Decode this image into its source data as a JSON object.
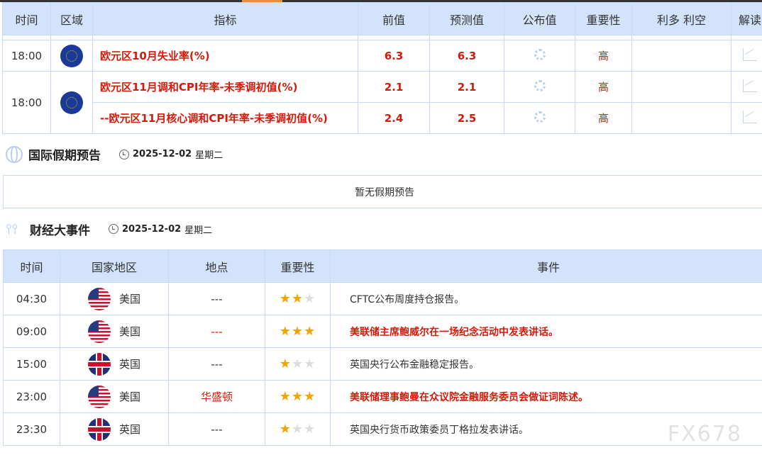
{
  "indicators": {
    "headers": [
      "时间",
      "区域",
      "指标",
      "前值",
      "预测值",
      "公布值",
      "重要性",
      "利多 利空",
      "解读"
    ],
    "rows": [
      {
        "time": "18:00",
        "region": "eu",
        "indicator": "欧元区10月失业率(%)",
        "previous": "6.3",
        "forecast": "6.3",
        "importance": "高"
      },
      {
        "time": "18:00",
        "region": "eu",
        "indicator": "欧元区11月调和CPI年率-未季调初值(%)",
        "previous": "2.1",
        "forecast": "2.1",
        "importance": "高"
      },
      {
        "time": "",
        "region": "",
        "indicator": "--欧元区11月核心调和CPI年率-未季调初值(%)",
        "previous": "2.4",
        "forecast": "2.5",
        "importance": "高"
      }
    ]
  },
  "holidays": {
    "title": "国际假期预告",
    "date": "2025-12-02",
    "weekday": "星期二",
    "empty_text": "暂无假期预告"
  },
  "events": {
    "title": "财经大事件",
    "date": "2025-12-02",
    "weekday": "星期二",
    "headers": [
      "时间",
      "国家地区",
      "地点",
      "重要性",
      "事件"
    ],
    "rows": [
      {
        "time": "04:30",
        "flag": "us",
        "country": "美国",
        "place": "---",
        "stars": 2,
        "event": "CFTC公布周度持仓报告。",
        "highlight": false
      },
      {
        "time": "09:00",
        "flag": "us",
        "country": "美国",
        "place": "---",
        "stars": 3,
        "event": "美联储主席鲍威尔在一场纪念活动中发表讲话。",
        "highlight": true
      },
      {
        "time": "15:00",
        "flag": "uk",
        "country": "英国",
        "place": "---",
        "stars": 1,
        "event": "英国央行公布金融稳定报告。",
        "highlight": false
      },
      {
        "time": "23:00",
        "flag": "us",
        "country": "美国",
        "place": "华盛顿",
        "stars": 3,
        "event": "美联储理事鲍曼在众议院金融服务委员会做证词陈述。",
        "highlight": true
      },
      {
        "time": "23:30",
        "flag": "uk",
        "country": "英国",
        "place": "---",
        "stars": 1,
        "event": "英国央行货币政策委员丁格拉发表讲话。",
        "highlight": false
      }
    ]
  },
  "watermark": "FX678",
  "colors": {
    "header_bg": "#d3e3fc",
    "highlight": "#d41a0a",
    "star": "#f5a300",
    "tab_accent": "#f08a3a"
  }
}
